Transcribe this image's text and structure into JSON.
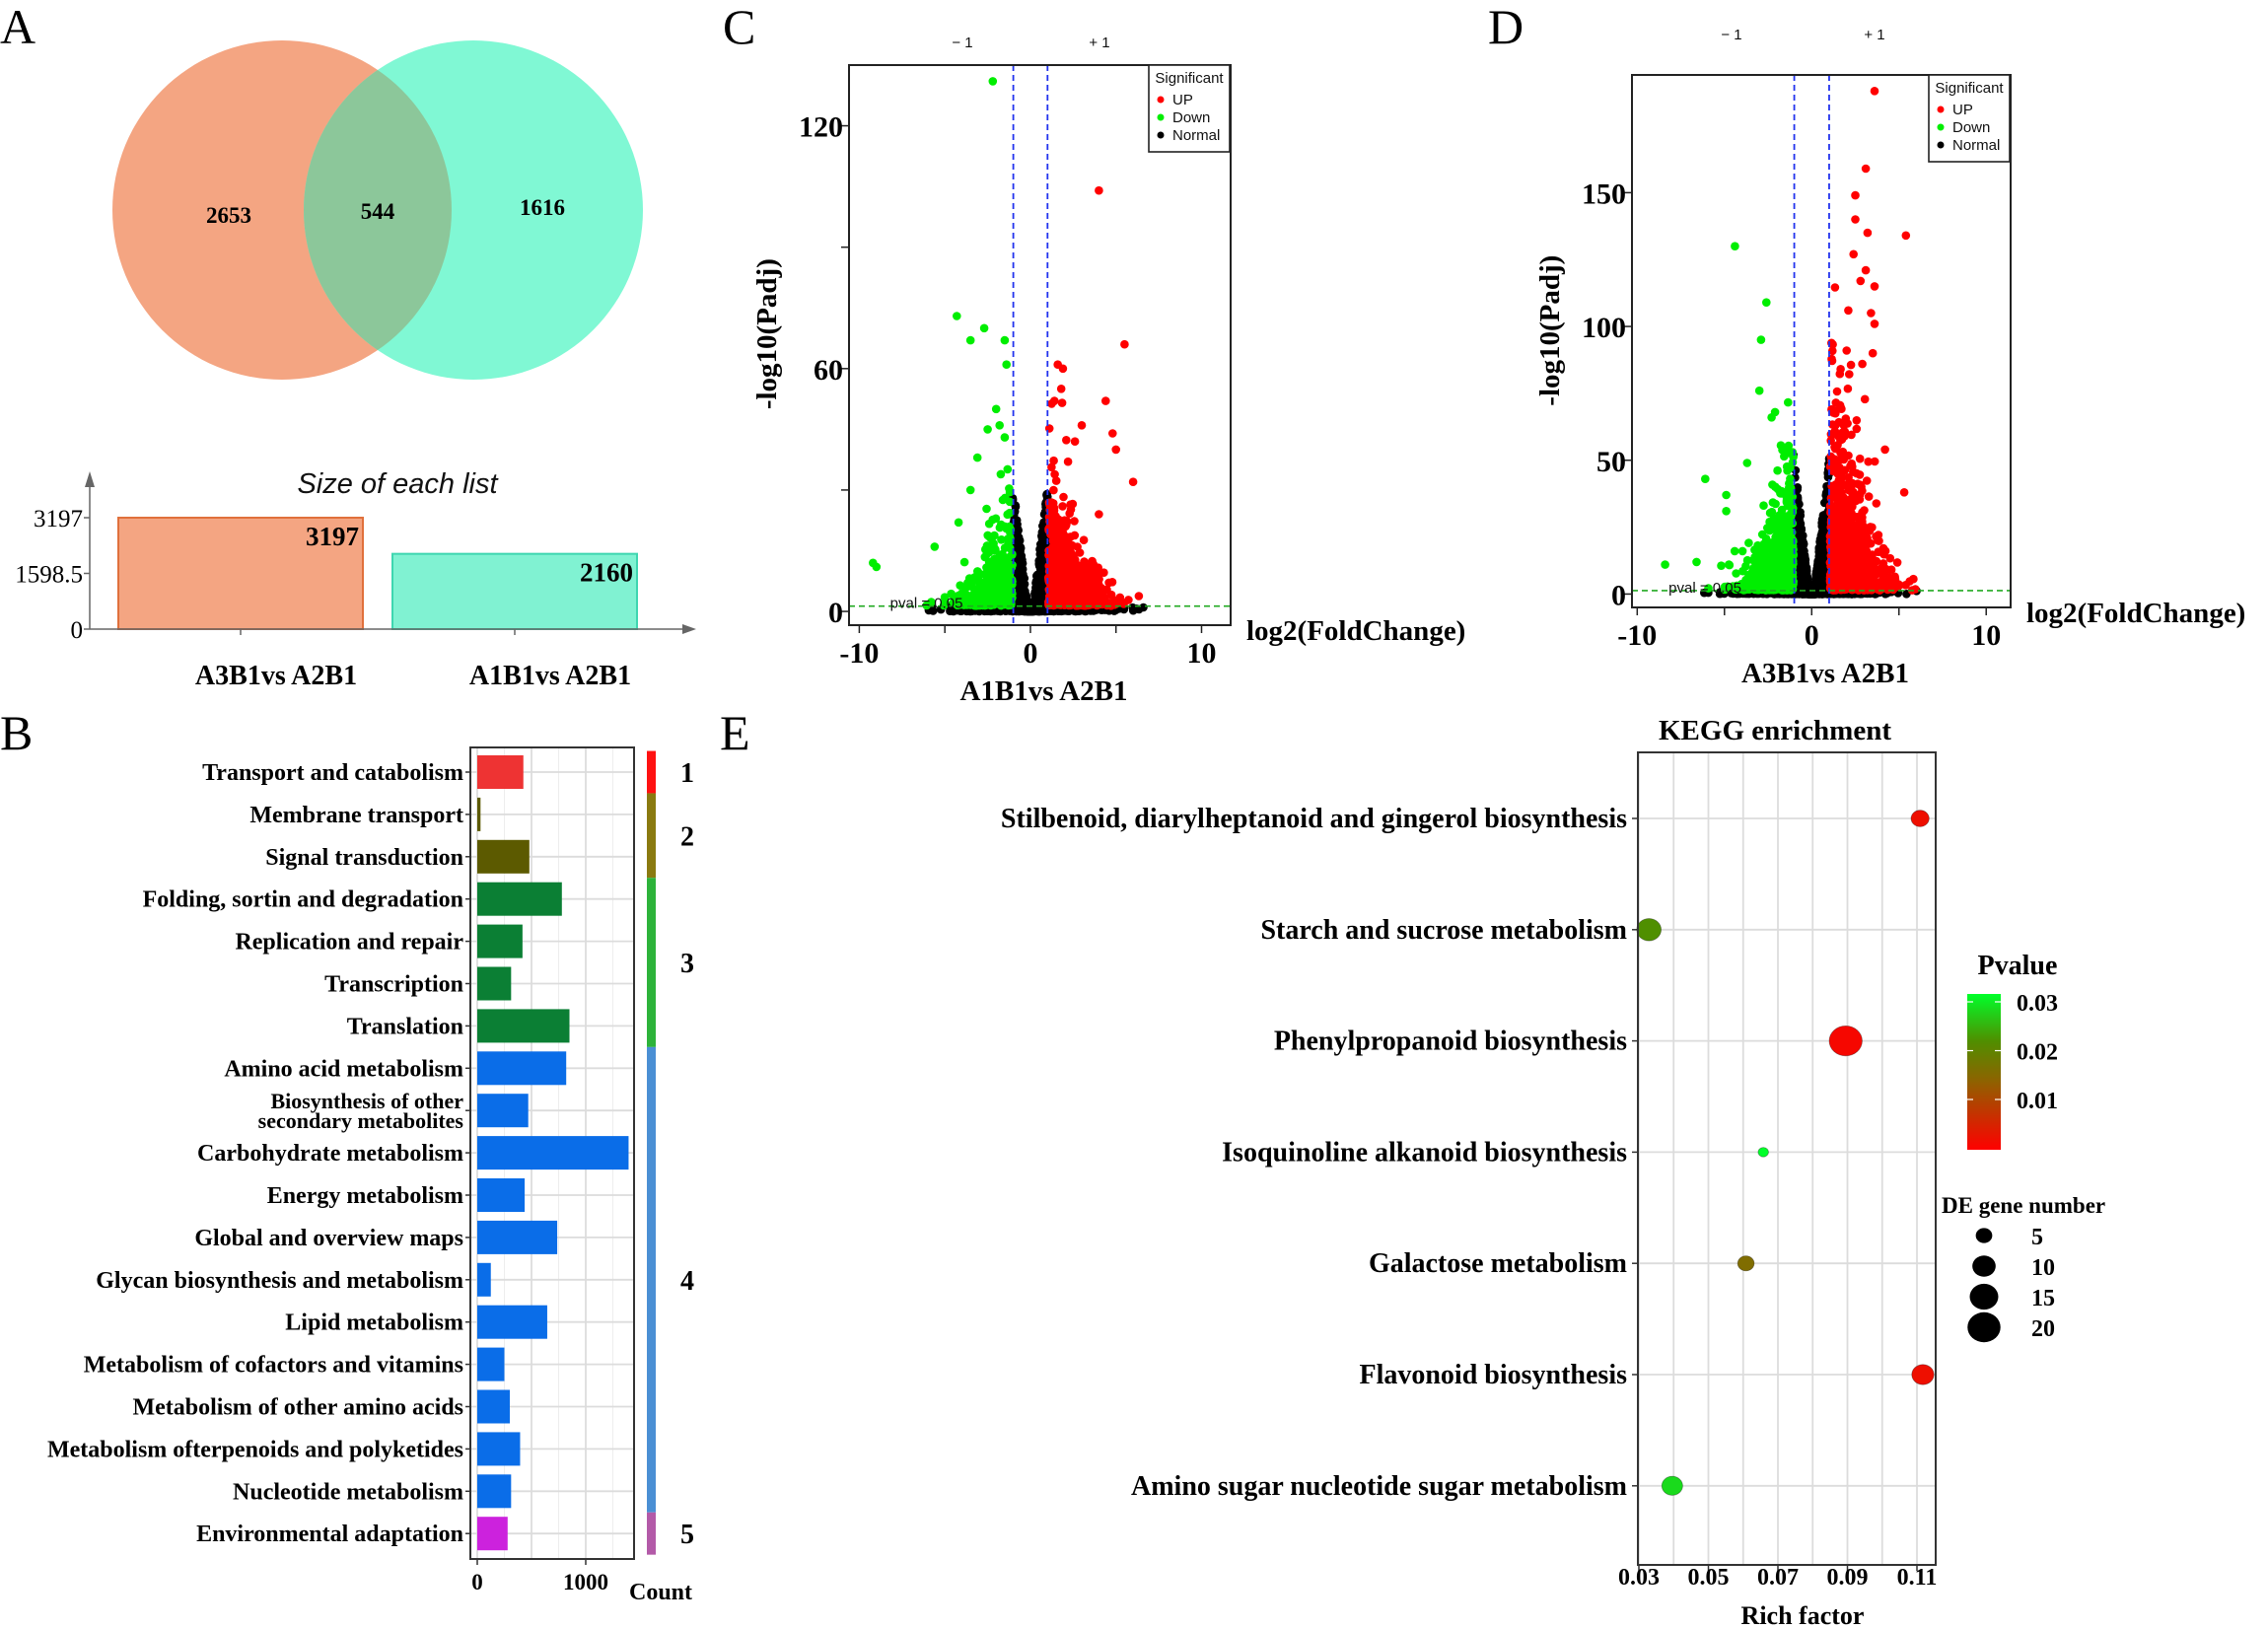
{
  "panel_labels": {
    "a": "A",
    "b": "B",
    "c": "C",
    "d": "D",
    "e": "E"
  },
  "chart_data": [
    {
      "type": "venn",
      "sets": [
        {
          "name": "A3B1vs A2B1",
          "only": "2653",
          "color": "#f4a582"
        },
        {
          "name": "A1B1vs A2B1",
          "only": "1616",
          "color": "#80f8d4"
        }
      ],
      "overlap": "544",
      "overlap_color": "#8cc79a"
    },
    {
      "type": "bar",
      "title": "Size of each list",
      "categories": [
        "A3B1vs A2B1",
        "A1B1vs A2B1"
      ],
      "values": [
        3197,
        2160
      ],
      "value_labels": [
        "3197",
        "2160"
      ],
      "colors": [
        "#f4a582",
        "#80f2d2"
      ],
      "border_colors": [
        "#e0703c",
        "#3ed6b0"
      ],
      "yticks": [
        {
          "value": 3197,
          "label": "3197"
        },
        {
          "value": 1598.5,
          "label": "1598.5"
        },
        {
          "value": 0,
          "label": "0"
        }
      ],
      "ylim": [
        0,
        3197
      ]
    },
    {
      "type": "bar",
      "orientation": "horizontal",
      "xlabel": "Count",
      "xticks": [
        {
          "value": 0,
          "label": "0"
        },
        {
          "value": 1000,
          "label": "1000"
        }
      ],
      "xlim": [
        0,
        1450
      ],
      "rows": [
        {
          "label": [
            "Transport and catabolism"
          ],
          "value": 425,
          "group": 0
        },
        {
          "label": [
            "Membrane transport"
          ],
          "value": 30,
          "group": 1
        },
        {
          "label": [
            "Signal transduction"
          ],
          "value": 480,
          "group": 1
        },
        {
          "label": [
            "Folding, sortin and degradation"
          ],
          "value": 780,
          "group": 2
        },
        {
          "label": [
            "Replication and repair"
          ],
          "value": 417,
          "group": 2
        },
        {
          "label": [
            "Transcription"
          ],
          "value": 312,
          "group": 2
        },
        {
          "label": [
            "Translation"
          ],
          "value": 850,
          "group": 2
        },
        {
          "label": [
            "Amino acid metabolism"
          ],
          "value": 820,
          "group": 3
        },
        {
          "label": [
            "Biosynthesis of other",
            "secondary metabolites"
          ],
          "value": 470,
          "group": 3
        },
        {
          "label": [
            "Carbohydrate metabolism"
          ],
          "value": 1395,
          "group": 3
        },
        {
          "label": [
            "Energy metabolism"
          ],
          "value": 437,
          "group": 3
        },
        {
          "label": [
            "Global and overview maps"
          ],
          "value": 737,
          "group": 3
        },
        {
          "label": [
            "Glycan biosynthesis and metabolism"
          ],
          "value": 125,
          "group": 3
        },
        {
          "label": [
            "Lipid metabolism"
          ],
          "value": 645,
          "group": 3
        },
        {
          "label": [
            "Metabolism of cofactors and vitamins"
          ],
          "value": 250,
          "group": 3
        },
        {
          "label": [
            "Metabolism of other amino acids"
          ],
          "value": 300,
          "group": 3
        },
        {
          "label": [
            "Metabolism ofterpenoids and polyketides"
          ],
          "value": 395,
          "group": 3
        },
        {
          "label": [
            "Nucleotide metabolism"
          ],
          "value": 312,
          "group": 3
        },
        {
          "label": [
            "Environmental adaptation"
          ],
          "value": 280,
          "group": 4
        }
      ],
      "groups": [
        {
          "label": "1",
          "bar_color": "#ee3333",
          "strip_color": "#ff1111",
          "first": 0,
          "last": 0
        },
        {
          "label": "2",
          "bar_color": "#5c5a00",
          "strip_color": "#8a7a10",
          "first": 1,
          "last": 2
        },
        {
          "label": "3",
          "bar_color": "#0b7f34",
          "strip_color": "#2db33a",
          "first": 3,
          "last": 6
        },
        {
          "label": "4",
          "bar_color": "#0a6de8",
          "strip_color": "#4a8fd4",
          "first": 7,
          "last": 17
        },
        {
          "label": "5",
          "bar_color": "#cc22dd",
          "strip_color": "#b35aa8",
          "first": 18,
          "last": 18
        }
      ]
    },
    {
      "type": "scatter",
      "subtype": "volcano",
      "xlabel": "log2(FoldChange)",
      "ylabel": "-log10(Padj)",
      "comparison": "A1B1vs A2B1",
      "xlim": [
        -10.6,
        11.7
      ],
      "ylim": [
        -3.4,
        135
      ],
      "xticks": [
        -10,
        -5,
        0,
        5,
        10
      ],
      "xtick_labels": [
        "-10",
        "",
        "0",
        "",
        "10"
      ],
      "yticks": [
        0,
        30,
        60,
        90,
        120
      ],
      "ytick_labels": [
        "0",
        "",
        "60",
        "",
        "120"
      ],
      "fc_lines": [
        -1,
        1
      ],
      "fc_line_labels": [
        "− 1",
        "+ 1"
      ],
      "pval_line": 1.3,
      "pval_label": "pval = 0.05",
      "legend": {
        "title": "Significant",
        "items": [
          {
            "label": "UP",
            "color": "#ff0000"
          },
          {
            "label": "Down",
            "color": "#00ee00"
          },
          {
            "label": "Normal",
            "color": "#000000"
          }
        ]
      },
      "de_total": 2160,
      "up_points": [
        [
          4.0,
          104
        ],
        [
          5.5,
          66
        ],
        [
          1.9,
          60
        ],
        [
          1.6,
          61
        ],
        [
          5.0,
          40
        ],
        [
          6.0,
          32
        ],
        [
          4.4,
          52
        ],
        [
          3.0,
          46
        ],
        [
          1.4,
          52
        ],
        [
          4.0,
          24
        ],
        [
          4.8,
          44
        ],
        [
          2.2,
          37
        ],
        [
          2.6,
          42
        ],
        [
          1.8,
          55
        ]
      ],
      "down_points": [
        [
          -2.2,
          131
        ],
        [
          -4.3,
          73
        ],
        [
          -2.7,
          70
        ],
        [
          -3.5,
          67
        ],
        [
          -1.5,
          67
        ],
        [
          -1.4,
          61
        ],
        [
          -9.2,
          12
        ],
        [
          -9.0,
          11
        ],
        [
          -5.6,
          16
        ],
        [
          -4.2,
          22
        ],
        [
          -3.5,
          30
        ],
        [
          -2.0,
          50
        ],
        [
          -1.8,
          46
        ],
        [
          -2.5,
          45
        ],
        [
          -3.1,
          38
        ],
        [
          -1.5,
          43
        ]
      ]
    },
    {
      "type": "scatter",
      "subtype": "volcano",
      "xlabel": "log2(FoldChange)",
      "ylabel": "-log10(Padj)",
      "comparison": "A3B1vs A2B1",
      "xlim": [
        -10.3,
        11.4
      ],
      "ylim": [
        -5,
        194
      ],
      "xticks": [
        -10,
        -5,
        0,
        5,
        10
      ],
      "xtick_labels": [
        "-10",
        "",
        "0",
        "",
        "10"
      ],
      "yticks": [
        0,
        50,
        100,
        150
      ],
      "ytick_labels": [
        "0",
        "50",
        "100",
        "150"
      ],
      "fc_lines": [
        -1,
        1
      ],
      "fc_line_labels": [
        "− 1",
        "+ 1"
      ],
      "pval_line": 1.3,
      "pval_label": "pval = 0.05",
      "legend": {
        "title": "Significant",
        "items": [
          {
            "label": "UP",
            "color": "#ff0000"
          },
          {
            "label": "Down",
            "color": "#00ee00"
          },
          {
            "label": "Normal",
            "color": "#000000"
          }
        ]
      },
      "de_total": 3197,
      "up_points": [
        [
          3.6,
          188
        ],
        [
          3.1,
          159
        ],
        [
          5.4,
          134
        ],
        [
          2.5,
          149
        ],
        [
          2.5,
          140
        ],
        [
          3.2,
          135
        ],
        [
          2.4,
          127
        ],
        [
          3.1,
          121
        ],
        [
          2.8,
          117
        ],
        [
          3.6,
          115
        ],
        [
          3.4,
          105
        ],
        [
          3.6,
          101
        ],
        [
          2.1,
          106
        ],
        [
          4.2,
          54
        ],
        [
          5.3,
          38
        ],
        [
          3.5,
          90
        ],
        [
          2.0,
          91
        ],
        [
          2.9,
          86
        ]
      ],
      "down_points": [
        [
          -4.4,
          130
        ],
        [
          -2.6,
          109
        ],
        [
          -2.9,
          95
        ],
        [
          -3.0,
          76
        ],
        [
          -8.4,
          11
        ],
        [
          -6.1,
          43
        ],
        [
          -4.9,
          37
        ],
        [
          -4.9,
          31
        ],
        [
          -3.7,
          49
        ],
        [
          -2.1,
          68
        ],
        [
          -6.6,
          12
        ],
        [
          -2.3,
          66
        ]
      ]
    },
    {
      "type": "scatter",
      "subtype": "bubble",
      "title": "KEGG enrichment",
      "xlabel": "Rich factor",
      "xlim": [
        0.0295,
        0.1133
      ],
      "xticks": [
        0.03,
        0.05,
        0.07,
        0.09,
        0.11
      ],
      "xtick_labels": [
        "0.03",
        "0.05",
        "0.07",
        "0.09",
        "0.11"
      ],
      "terms": [
        {
          "label": "Stilbenoid, diarylheptanoid and gingerol biosynthesis",
          "rich_factor": 0.1109,
          "pvalue": 0.002,
          "count": 6
        },
        {
          "label": "Starch and sucrose metabolism",
          "rich_factor": 0.0329,
          "pvalue": 0.021,
          "count": 11
        },
        {
          "label": "Phenylpropanoid biosynthesis",
          "rich_factor": 0.0895,
          "pvalue": 0.001,
          "count": 20
        },
        {
          "label": "Isoquinoline alkanoid biosynthesis",
          "rich_factor": 0.0658,
          "pvalue": 0.03,
          "count": 2
        },
        {
          "label": "Galactose metabolism",
          "rich_factor": 0.0608,
          "pvalue": 0.015,
          "count": 5
        },
        {
          "label": "Flavonoid biosynthesis",
          "rich_factor": 0.1117,
          "pvalue": 0.002,
          "count": 9
        },
        {
          "label": "Amino sugar nucleotide sugar metabolism",
          "rich_factor": 0.0396,
          "pvalue": 0.027,
          "count": 8
        }
      ],
      "color_legend": {
        "title": "Pvalue",
        "ticks": [
          {
            "value": 0.03,
            "label": "0.03"
          },
          {
            "value": 0.02,
            "label": "0.02"
          },
          {
            "value": 0.01,
            "label": "0.01"
          }
        ],
        "low_color": "#ff0000",
        "high_color": "#00ff22"
      },
      "size_legend": {
        "title": "DE gene number",
        "items": [
          {
            "value": 5,
            "label": "5"
          },
          {
            "value": 10,
            "label": "10"
          },
          {
            "value": 15,
            "label": "15"
          },
          {
            "value": 20,
            "label": "20"
          }
        ]
      }
    }
  ]
}
